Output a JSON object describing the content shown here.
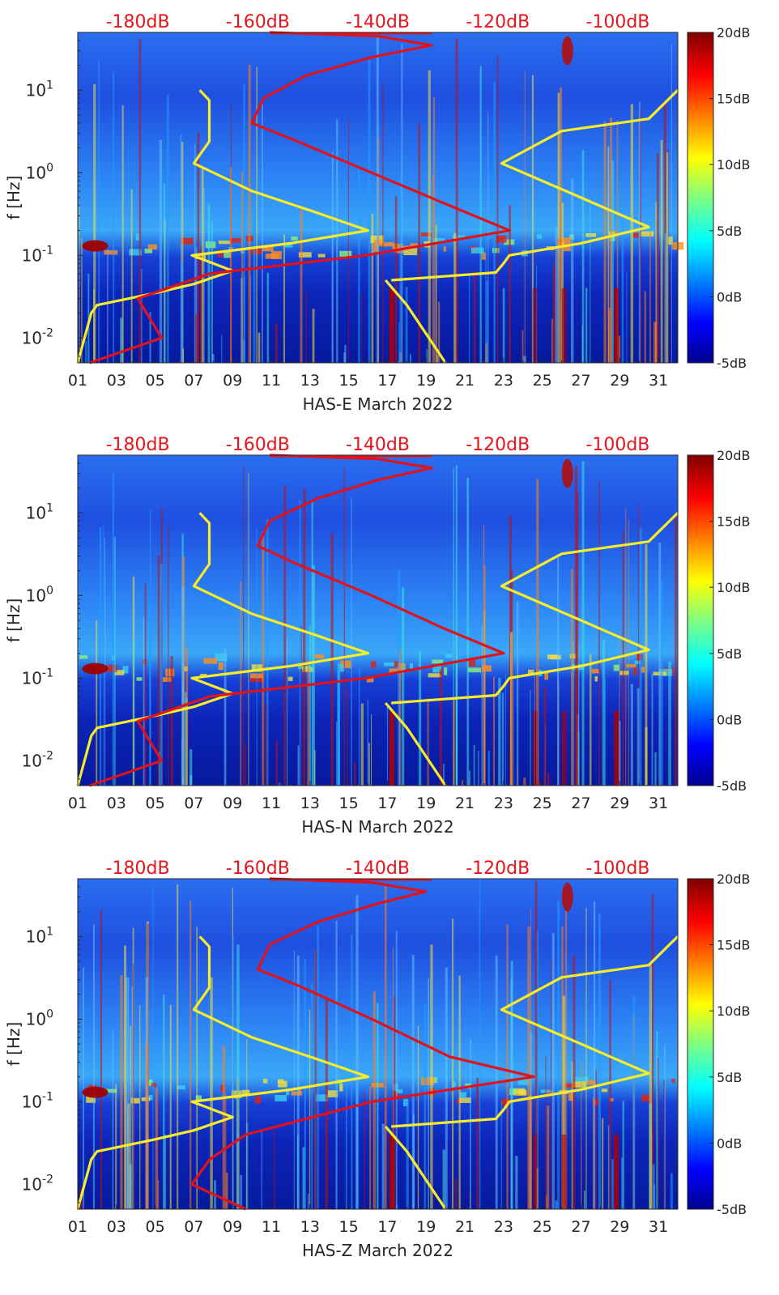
{
  "chart_data": [
    {
      "type": "heatmap",
      "panel": "HAS-E",
      "xlabel": "HAS-E March 2022",
      "ylabel": "f [Hz]",
      "x_ticks": [
        "01",
        "03",
        "05",
        "07",
        "09",
        "11",
        "13",
        "15",
        "17",
        "19",
        "21",
        "23",
        "25",
        "27",
        "29",
        "31"
      ],
      "xlim": [
        1,
        32
      ],
      "y_scale": "log",
      "ylim": [
        0.005,
        50
      ],
      "y_ticks": [
        {
          "label": "10",
          "exp": "-2",
          "value": 0.01
        },
        {
          "label": "10",
          "exp": "-1",
          "value": 0.1
        },
        {
          "label": "10",
          "exp": "0",
          "value": 1
        },
        {
          "label": "10",
          "exp": "1",
          "value": 10
        }
      ],
      "top_axis_labels": [
        "-180dB",
        "-160dB",
        "-140dB",
        "-120dB",
        "-100dB"
      ],
      "top_axis_range_dB": [
        -190,
        -90
      ],
      "colorbar": {
        "labels": [
          "20dB",
          "15dB",
          "10dB",
          "5dB",
          "0dB",
          "-5dB"
        ],
        "range": [
          -5,
          20
        ]
      },
      "colors": {
        "top_axis": "#e8141b",
        "model_curves": "#f7ec2a",
        "station_psd": "#e0121c"
      },
      "series": [
        {
          "values": [
            {
              "day": 1,
              "f": 0.005
            },
            {
              "day": 1.7,
              "f": 0.02
            },
            {
              "day": 2.0,
              "f": 0.025
            },
            {
              "day": 5,
              "f": 0.035
            },
            {
              "day": 7,
              "f": 0.045
            },
            {
              "day": 9,
              "f": 0.065
            },
            {
              "day": 8,
              "f": 0.08
            },
            {
              "day": 6.9,
              "f": 0.1
            },
            {
              "day": 12,
              "f": 0.14
            },
            {
              "day": 16,
              "f": 0.2
            },
            {
              "day": 13,
              "f": 0.35
            },
            {
              "day": 10,
              "f": 0.6
            },
            {
              "day": 7,
              "f": 1.3
            },
            {
              "day": 7.8,
              "f": 2.4
            },
            {
              "day": 7.8,
              "f": 7.5
            },
            {
              "day": 7.3,
              "f": 10
            }
          ]
        },
        {
          "values": [
            {
              "day": 16.9,
              "f": 0.05
            },
            {
              "day": 18,
              "f": 0.025
            },
            {
              "day": 20,
              "f": 0.005
            }
          ]
        },
        {
          "values": [
            {
              "day": 17.2,
              "f": 0.05
            },
            {
              "day": 22.6,
              "f": 0.062
            },
            {
              "day": 23,
              "f": 0.08
            },
            {
              "day": 23.3,
              "f": 0.1
            },
            {
              "day": 27,
              "f": 0.14
            },
            {
              "day": 30.5,
              "f": 0.22
            },
            {
              "day": 27,
              "f": 0.5
            },
            {
              "day": 22.9,
              "f": 1.3
            },
            {
              "day": 26,
              "f": 3.2
            },
            {
              "day": 30.5,
              "f": 4.5
            },
            {
              "day": 32,
              "f": 10
            }
          ]
        },
        {
          "values": [
            {
              "day": -188,
              "f": 0.005
            },
            {
              "day": -176,
              "f": 0.01
            },
            {
              "day": -180,
              "f": 0.03
            },
            {
              "day": -168,
              "f": 0.06
            },
            {
              "day": -142,
              "f": 0.1
            },
            {
              "day": -118,
              "f": 0.2
            },
            {
              "day": -128,
              "f": 0.4
            },
            {
              "day": -141,
              "f": 1
            },
            {
              "day": -154,
              "f": 2.5
            },
            {
              "day": -161,
              "f": 4
            },
            {
              "day": -159,
              "f": 8
            },
            {
              "day": -152,
              "f": 15
            },
            {
              "day": -141,
              "f": 25
            },
            {
              "day": -131,
              "f": 35
            },
            {
              "day": -140,
              "f": 45
            },
            {
              "day": -158,
              "f": 50
            }
          ]
        }
      ]
    },
    {
      "type": "heatmap",
      "panel": "HAS-N",
      "xlabel": "HAS-N March 2022",
      "ylabel": "f [Hz]",
      "x_ticks": [
        "01",
        "03",
        "05",
        "07",
        "09",
        "11",
        "13",
        "15",
        "17",
        "19",
        "21",
        "23",
        "25",
        "27",
        "29",
        "31"
      ],
      "xlim": [
        1,
        32
      ],
      "y_scale": "log",
      "ylim": [
        0.005,
        50
      ],
      "y_ticks": [
        {
          "label": "10",
          "exp": "-2",
          "value": 0.01
        },
        {
          "label": "10",
          "exp": "-1",
          "value": 0.1
        },
        {
          "label": "10",
          "exp": "0",
          "value": 1
        },
        {
          "label": "10",
          "exp": "1",
          "value": 10
        }
      ],
      "top_axis_labels": [
        "-180dB",
        "-160dB",
        "-140dB",
        "-120dB",
        "-100dB"
      ],
      "top_axis_range_dB": [
        -190,
        -90
      ],
      "colorbar": {
        "labels": [
          "20dB",
          "15dB",
          "10dB",
          "5dB",
          "0dB",
          "-5dB"
        ],
        "range": [
          -5,
          20
        ]
      },
      "colors": {
        "top_axis": "#e8141b",
        "model_curves": "#f7ec2a",
        "station_psd": "#e0121c"
      },
      "series": [
        {
          "values": [
            {
              "day": 1,
              "f": 0.005
            },
            {
              "day": 1.7,
              "f": 0.02
            },
            {
              "day": 2.0,
              "f": 0.025
            },
            {
              "day": 5,
              "f": 0.035
            },
            {
              "day": 7,
              "f": 0.045
            },
            {
              "day": 9,
              "f": 0.065
            },
            {
              "day": 8,
              "f": 0.08
            },
            {
              "day": 6.9,
              "f": 0.1
            },
            {
              "day": 12,
              "f": 0.14
            },
            {
              "day": 16,
              "f": 0.2
            },
            {
              "day": 13,
              "f": 0.35
            },
            {
              "day": 10,
              "f": 0.6
            },
            {
              "day": 7,
              "f": 1.3
            },
            {
              "day": 7.8,
              "f": 2.4
            },
            {
              "day": 7.8,
              "f": 7.5
            },
            {
              "day": 7.3,
              "f": 10
            }
          ]
        },
        {
          "values": [
            {
              "day": 16.9,
              "f": 0.05
            },
            {
              "day": 18,
              "f": 0.025
            },
            {
              "day": 20,
              "f": 0.005
            }
          ]
        },
        {
          "values": [
            {
              "day": 17.2,
              "f": 0.05
            },
            {
              "day": 22.6,
              "f": 0.062
            },
            {
              "day": 23,
              "f": 0.08
            },
            {
              "day": 23.3,
              "f": 0.1
            },
            {
              "day": 27,
              "f": 0.14
            },
            {
              "day": 30.5,
              "f": 0.22
            },
            {
              "day": 27,
              "f": 0.5
            },
            {
              "day": 22.9,
              "f": 1.3
            },
            {
              "day": 26,
              "f": 3.2
            },
            {
              "day": 30.5,
              "f": 4.5
            },
            {
              "day": 32,
              "f": 10
            }
          ]
        },
        {
          "values": [
            {
              "day": -188,
              "f": 0.005
            },
            {
              "day": -176,
              "f": 0.01
            },
            {
              "day": -180,
              "f": 0.03
            },
            {
              "day": -168,
              "f": 0.06
            },
            {
              "day": -142,
              "f": 0.1
            },
            {
              "day": -119,
              "f": 0.2
            },
            {
              "day": -129,
              "f": 0.4
            },
            {
              "day": -141,
              "f": 1
            },
            {
              "day": -154,
              "f": 2.5
            },
            {
              "day": -160,
              "f": 4
            },
            {
              "day": -158,
              "f": 8
            },
            {
              "day": -150,
              "f": 15
            },
            {
              "day": -140,
              "f": 25
            },
            {
              "day": -131,
              "f": 35
            },
            {
              "day": -140,
              "f": 45
            },
            {
              "day": -158,
              "f": 50
            }
          ]
        }
      ]
    },
    {
      "type": "heatmap",
      "panel": "HAS-Z",
      "xlabel": "HAS-Z March 2022",
      "ylabel": "f [Hz]",
      "x_ticks": [
        "01",
        "03",
        "05",
        "07",
        "09",
        "11",
        "13",
        "15",
        "17",
        "19",
        "21",
        "23",
        "25",
        "27",
        "29",
        "31"
      ],
      "xlim": [
        1,
        32
      ],
      "y_scale": "log",
      "ylim": [
        0.005,
        50
      ],
      "y_ticks": [
        {
          "label": "10",
          "exp": "-2",
          "value": 0.01
        },
        {
          "label": "10",
          "exp": "-1",
          "value": 0.1
        },
        {
          "label": "10",
          "exp": "0",
          "value": 1
        },
        {
          "label": "10",
          "exp": "1",
          "value": 10
        }
      ],
      "top_axis_labels": [
        "-180dB",
        "-160dB",
        "-140dB",
        "-120dB",
        "-100dB"
      ],
      "top_axis_range_dB": [
        -190,
        -90
      ],
      "colorbar": {
        "labels": [
          "20dB",
          "15dB",
          "10dB",
          "5dB",
          "0dB",
          "-5dB"
        ],
        "range": [
          -5,
          20
        ]
      },
      "colors": {
        "top_axis": "#e8141b",
        "model_curves": "#f7ec2a",
        "station_psd": "#e0121c"
      },
      "series": [
        {
          "values": [
            {
              "day": 1,
              "f": 0.005
            },
            {
              "day": 1.7,
              "f": 0.02
            },
            {
              "day": 2.0,
              "f": 0.025
            },
            {
              "day": 5,
              "f": 0.035
            },
            {
              "day": 7,
              "f": 0.045
            },
            {
              "day": 9,
              "f": 0.065
            },
            {
              "day": 8,
              "f": 0.08
            },
            {
              "day": 6.9,
              "f": 0.1
            },
            {
              "day": 12,
              "f": 0.14
            },
            {
              "day": 16,
              "f": 0.2
            },
            {
              "day": 13,
              "f": 0.35
            },
            {
              "day": 10,
              "f": 0.6
            },
            {
              "day": 7,
              "f": 1.3
            },
            {
              "day": 7.8,
              "f": 2.4
            },
            {
              "day": 7.8,
              "f": 7.5
            },
            {
              "day": 7.3,
              "f": 10
            }
          ]
        },
        {
          "values": [
            {
              "day": 16.9,
              "f": 0.05
            },
            {
              "day": 18,
              "f": 0.025
            },
            {
              "day": 20,
              "f": 0.005
            }
          ]
        },
        {
          "values": [
            {
              "day": 17.2,
              "f": 0.05
            },
            {
              "day": 22.6,
              "f": 0.062
            },
            {
              "day": 23,
              "f": 0.08
            },
            {
              "day": 23.3,
              "f": 0.1
            },
            {
              "day": 27,
              "f": 0.14
            },
            {
              "day": 30.5,
              "f": 0.22
            },
            {
              "day": 27,
              "f": 0.5
            },
            {
              "day": 22.9,
              "f": 1.3
            },
            {
              "day": 26,
              "f": 3.2
            },
            {
              "day": 30.5,
              "f": 4.5
            },
            {
              "day": 32,
              "f": 10
            }
          ]
        },
        {
          "values": [
            {
              "day": -162,
              "f": 0.005
            },
            {
              "day": -171,
              "f": 0.01
            },
            {
              "day": -168,
              "f": 0.02
            },
            {
              "day": -162,
              "f": 0.04
            },
            {
              "day": -141,
              "f": 0.1
            },
            {
              "day": -114,
              "f": 0.2
            },
            {
              "day": -128,
              "f": 0.35
            },
            {
              "day": -141,
              "f": 1
            },
            {
              "day": -153,
              "f": 2.5
            },
            {
              "day": -160,
              "f": 4
            },
            {
              "day": -158,
              "f": 8
            },
            {
              "day": -150,
              "f": 15
            },
            {
              "day": -140,
              "f": 25
            },
            {
              "day": -132,
              "f": 35
            },
            {
              "day": -141,
              "f": 45
            },
            {
              "day": -158,
              "f": 50
            }
          ]
        }
      ]
    }
  ]
}
